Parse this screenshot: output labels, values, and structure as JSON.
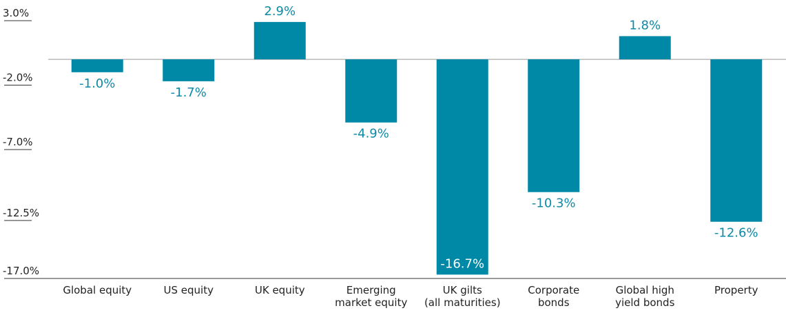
{
  "chart_data": {
    "type": "bar",
    "categories": [
      "Global equity",
      "US equity",
      "UK equity",
      "Emerging\nmarket equity",
      "UK gilts\n(all maturities)",
      "Corporate\nbonds",
      "Global high\nyield bonds",
      "Property"
    ],
    "values": [
      -1.0,
      -1.7,
      2.9,
      -4.9,
      -16.7,
      -10.3,
      1.8,
      -12.6
    ],
    "value_labels": [
      "-1.0%",
      "-1.7%",
      "2.9%",
      "-4.9%",
      "-16.7%",
      "-10.3%",
      "1.8%",
      "-12.6%"
    ],
    "color": "#0089a6",
    "ylim": [
      -17.0,
      3.0
    ],
    "yticks": [
      {
        "value": 3.0,
        "label": "3.0%"
      },
      {
        "value": -2.0,
        "label": "-2.0%"
      },
      {
        "value": -7.0,
        "label": "-7.0%"
      },
      {
        "value": -12.5,
        "label": "-12.5%"
      },
      {
        "value": -17.0,
        "label": "-17.0%"
      }
    ]
  }
}
